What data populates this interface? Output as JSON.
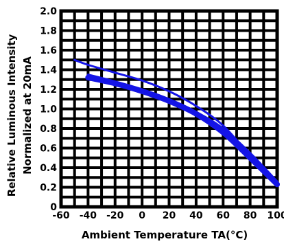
{
  "chart_data": {
    "type": "line",
    "title": "",
    "xlabel": "Ambient Temperature TA(°C)",
    "ylabel_lines": [
      "Relative Luminous Intensity",
      "Normalized at 20mA"
    ],
    "xlim": [
      -60,
      100
    ],
    "ylim": [
      0,
      2.0
    ],
    "x_ticks": [
      -60,
      -40,
      -20,
      0,
      20,
      40,
      60,
      80,
      100
    ],
    "x_tick_labels": [
      "-60",
      "-40",
      "-20",
      "0",
      "20",
      "40",
      "60",
      "80",
      "100"
    ],
    "y_ticks": [
      0,
      0.2,
      0.4,
      0.6,
      0.8,
      1.0,
      1.2,
      1.4,
      1.6,
      1.8,
      2.0
    ],
    "y_tick_labels": [
      "0",
      "0.2",
      "0.4",
      "0.6",
      "0.8",
      "1.0",
      "1.2",
      "1.4",
      "1.6",
      "1.8",
      "2.0"
    ],
    "grid": true,
    "line_color": "#1414e6",
    "series": [
      {
        "x": [
          -50,
          -40,
          -20,
          0,
          20,
          40,
          60,
          80
        ],
        "y": [
          1.5,
          1.45,
          1.37,
          1.29,
          1.18,
          1.03,
          0.83,
          0.52
        ],
        "width": 3
      },
      {
        "x": [
          -40,
          -20,
          0,
          20,
          40,
          60,
          80,
          100
        ],
        "y": [
          1.32,
          1.26,
          1.18,
          1.08,
          0.95,
          0.76,
          0.5,
          0.23
        ],
        "width": 8
      },
      {
        "x": [
          -40,
          -20,
          0,
          20,
          40,
          60,
          80,
          100
        ],
        "y": [
          1.35,
          1.28,
          1.2,
          1.1,
          0.97,
          0.8,
          0.55,
          0.26
        ],
        "width": 3
      }
    ]
  }
}
